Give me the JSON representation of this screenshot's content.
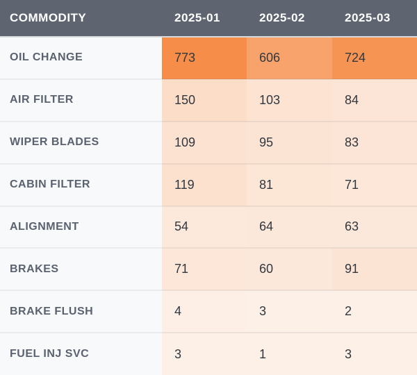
{
  "chart_data": {
    "type": "heatmap",
    "title": "",
    "corner_label": "COMMODITY",
    "columns": [
      "2025-01",
      "2025-02",
      "2025-03"
    ],
    "rows": [
      "OIL CHANGE",
      "AIR FILTER",
      "WIPER BLADES",
      "CABIN FILTER",
      "ALIGNMENT",
      "BRAKES",
      "BRAKE FLUSH",
      "FUEL INJ SVC"
    ],
    "values": [
      [
        773,
        606,
        724
      ],
      [
        150,
        103,
        84
      ],
      [
        109,
        95,
        83
      ],
      [
        119,
        81,
        71
      ],
      [
        54,
        64,
        63
      ],
      [
        71,
        60,
        91
      ],
      [
        4,
        3,
        2
      ],
      [
        3,
        1,
        3
      ]
    ],
    "color_scale": {
      "min": 0,
      "max": 773,
      "min_color": "#fdf0e7",
      "max_color": "#f68e49"
    }
  },
  "colors": {
    "header_bg": "#5e6570",
    "header_text": "#ffffff",
    "row_label_bg": "#f8f9fb",
    "row_label_text": "#5a6270",
    "cell_text": "#31373f",
    "divider": "#e9ebee"
  }
}
